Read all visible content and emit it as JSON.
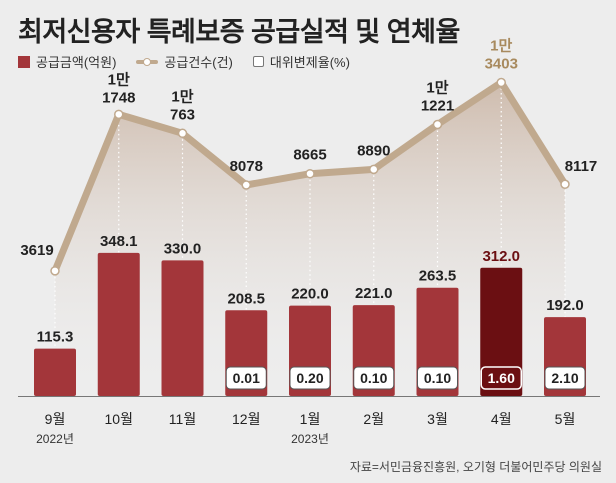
{
  "title": "최저신용자 특례보증 공급실적 및 연체율",
  "legend": {
    "bar": "공급금액(억원)",
    "line": "공급건수(건)",
    "box": "대위변제율(%)"
  },
  "source": "자료=서민금융진흥원, 오기형 더불어민주당 의원실",
  "chart_data": {
    "type": "bar",
    "title": "최저신용자 특례보증 공급실적 및 연체율",
    "categories": [
      "9월",
      "10월",
      "11월",
      "12월",
      "1월",
      "2월",
      "3월",
      "4월",
      "5월"
    ],
    "year_labels": [
      {
        "index": 0,
        "text": "2022년"
      },
      {
        "index": 4,
        "text": "2023년"
      }
    ],
    "highlight_index": 7,
    "series": [
      {
        "name": "공급금액(억원)",
        "kind": "bar",
        "values": [
          115.3,
          348.1,
          330.0,
          208.5,
          220.0,
          221.0,
          263.5,
          312.0,
          192.0
        ],
        "labels": [
          "115.3",
          "348.1",
          "330.0",
          "208.5",
          "220.0",
          "221.0",
          "263.5",
          "312.0",
          "192.0"
        ]
      },
      {
        "name": "공급건수(건)",
        "kind": "line",
        "values": [
          3619,
          11748,
          10763,
          8078,
          8665,
          8890,
          11221,
          13403,
          8117
        ],
        "label_top": [
          "",
          "1만",
          "1만",
          "",
          "",
          "",
          "1만",
          "1만",
          ""
        ],
        "label_bottom": [
          "3619",
          "1748",
          "763",
          "8078",
          "8665",
          "8890",
          "1221",
          "3403",
          "8117"
        ]
      },
      {
        "name": "대위변제율(%)",
        "kind": "box",
        "values": [
          null,
          null,
          null,
          0.01,
          0.2,
          0.1,
          0.1,
          1.6,
          2.1
        ],
        "labels": [
          "",
          "",
          "",
          "0.01",
          "0.20",
          "0.10",
          "0.10",
          "1.60",
          "2.10"
        ]
      }
    ],
    "colors": {
      "bar": "#a3363a",
      "bar_highlight": "#6b0f12",
      "line": "#c0a98e",
      "line_label_highlight": "#a88a5e",
      "area_top": "#c9b3a2"
    }
  }
}
